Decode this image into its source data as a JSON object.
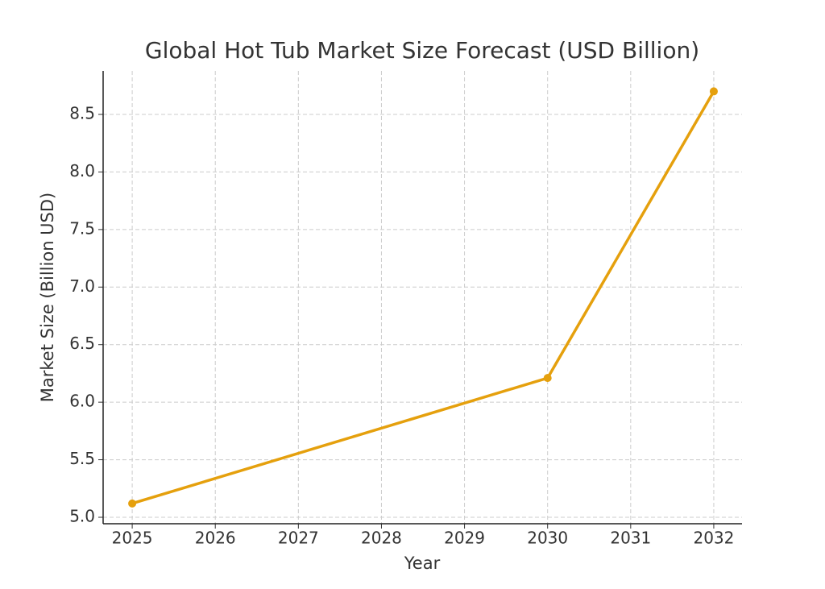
{
  "chart_data": {
    "type": "line",
    "title": "Global Hot Tub Market Size Forecast (USD Billion)",
    "x_label": "Year",
    "y_label": "Market Size (Billion USD)",
    "series": [
      {
        "x": [
          2025,
          2030,
          2032
        ],
        "values": [
          5.12,
          6.21,
          8.7
        ],
        "color": "#e5a00d"
      }
    ],
    "xlim": [
      2024.65,
      2032.34
    ],
    "ylim": [
      4.944,
      8.878
    ],
    "xticks": [
      2025,
      2026,
      2027,
      2028,
      2029,
      2030,
      2031,
      2032
    ],
    "yticks": [
      {
        "value": 5,
        "label": "5.0"
      },
      {
        "value": 5.5,
        "label": "5.5"
      },
      {
        "value": 6,
        "label": "6.0"
      },
      {
        "value": 6.5,
        "label": "6.5"
      },
      {
        "value": 7,
        "label": "7.0"
      },
      {
        "value": 7.5,
        "label": "7.5"
      },
      {
        "value": 8,
        "label": "8.0"
      },
      {
        "value": 8.5,
        "label": "8.5"
      }
    ],
    "grid": true
  }
}
